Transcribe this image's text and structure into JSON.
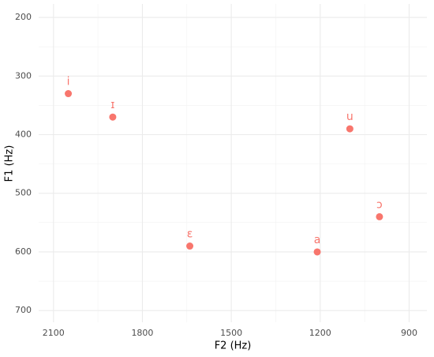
{
  "chart_data": {
    "type": "scatter",
    "x_label": "F2 (Hz)",
    "y_label": "F1 (Hz)",
    "series": [
      {
        "color": "#F8766D",
        "x": [
          2050,
          1900,
          1640,
          1210,
          1100,
          1000
        ],
        "values": [
          330,
          370,
          590,
          600,
          390,
          540
        ],
        "labels": [
          "i",
          "ɪ",
          "ɛ",
          "a",
          "u",
          "ɔ"
        ]
      }
    ],
    "xlim": [
      2150,
      840
    ],
    "xticks": [
      2100,
      1800,
      1500,
      1200,
      900
    ],
    "x_minor_grid": [
      1950,
      1650,
      1350,
      1050
    ],
    "ylim": [
      177,
      720
    ],
    "yticks": [
      200,
      300,
      400,
      500,
      600,
      700
    ],
    "y_minor_grid": [
      250,
      350,
      450,
      550,
      650
    ],
    "grid": true
  }
}
